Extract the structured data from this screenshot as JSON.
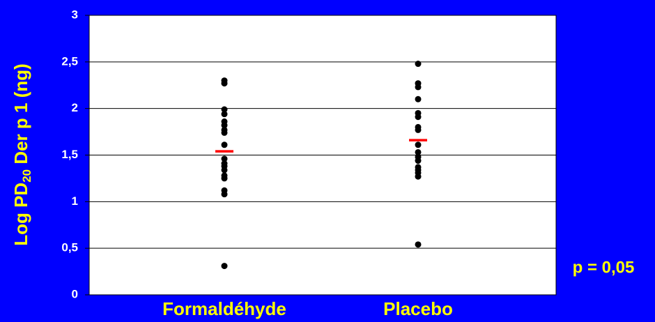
{
  "chart_data": {
    "type": "strip",
    "ylabel": [
      "Log PD",
      "20",
      " Der p 1 (ng)"
    ],
    "categories": [
      "Formaldéhyde",
      "Placebo"
    ],
    "values": [
      [
        2.3,
        2.27,
        1.99,
        1.94,
        1.86,
        1.82,
        1.77,
        1.74,
        1.61,
        1.46,
        1.41,
        1.38,
        1.34,
        1.28,
        1.25,
        1.12,
        1.08,
        0.31
      ],
      [
        2.48,
        2.27,
        2.23,
        2.1,
        1.95,
        1.91,
        1.8,
        1.77,
        1.61,
        1.53,
        1.48,
        1.44,
        1.37,
        1.34,
        1.31,
        1.27,
        0.54
      ]
    ],
    "means": [
      1.54,
      1.66
    ],
    "point_color": "#000000",
    "mean_color": "#ff0000",
    "ylim": [
      0,
      3
    ],
    "yticks": [
      0,
      {
        "value": 0.5,
        "label": "0,5"
      },
      1,
      {
        "value": 1.5,
        "label": "1,5"
      },
      2,
      {
        "value": 2.5,
        "label": "2,5"
      },
      3
    ],
    "grid": true,
    "annotation": "p = 0,05"
  }
}
